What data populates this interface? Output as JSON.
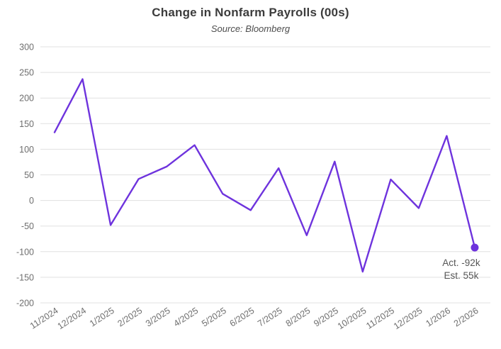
{
  "header": {
    "title": "Change in Nonfarm Payrolls (00s)",
    "subtitle": "Source: Bloomberg"
  },
  "chart_data": {
    "type": "line",
    "title": "Change in Nonfarm Payrolls (00s)",
    "subtitle": "Source: Bloomberg",
    "xlabel": "",
    "ylabel": "",
    "categories": [
      "11/2024",
      "12/2024",
      "1/2025",
      "2/2025",
      "3/2025",
      "4/2025",
      "5/2025",
      "6/2025",
      "7/2025",
      "8/2025",
      "9/2025",
      "10/2025",
      "11/2025",
      "12/2025",
      "1/2026",
      "2/2026"
    ],
    "values": [
      133,
      237,
      -48,
      42,
      66,
      108,
      13,
      -19,
      63,
      -68,
      76,
      -139,
      41,
      -15,
      126,
      -92
    ],
    "ylim": [
      -200,
      300
    ],
    "ytick_step": 50,
    "grid": "horizontal-only",
    "legend": "none",
    "marker": "end-dot-only",
    "annotation": {
      "actual_label": "Act. -92k",
      "estimate_label": "Est. 55k"
    },
    "colors": {
      "line": "#6e33dd",
      "end_dot": "#6e33dd",
      "grid": "#e1e1e1",
      "tick_label": "#6e6e6e",
      "annotation_text": "#565656",
      "title": "#3c3c3c",
      "subtitle": "#4d4d4d",
      "background": "#ffffff"
    }
  }
}
